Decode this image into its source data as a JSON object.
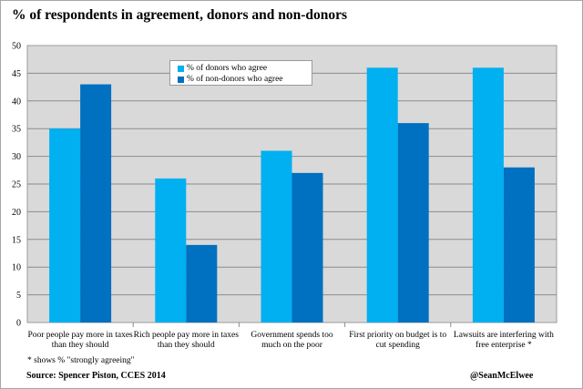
{
  "chart_data": {
    "type": "bar",
    "title": "% of respondents in agreement, donors and non-donors",
    "categories": [
      [
        "Poor people pay more in taxes",
        "than they should"
      ],
      [
        "Rich people pay more in taxes",
        "than they should"
      ],
      [
        "Government spends too",
        "much on the poor"
      ],
      [
        "First priority on budget is to",
        "cut spending"
      ],
      [
        "Lawsuits are interfering with",
        "free enterprise *"
      ]
    ],
    "series": [
      {
        "name": "% of donors who agree",
        "color": "#00b0f0",
        "values": [
          35,
          26,
          31,
          46,
          46
        ]
      },
      {
        "name": "% of non-donors who agree",
        "color": "#0070c0",
        "values": [
          43,
          14,
          27,
          36,
          28
        ]
      }
    ],
    "ylim": [
      0,
      50
    ],
    "yticks": [
      0,
      5,
      10,
      15,
      20,
      25,
      30,
      35,
      40,
      45,
      50
    ],
    "grid": true,
    "legend_position": "top-left",
    "plot_background": "#d9d9d9",
    "note": "* shows % \"strongly agreeing\"",
    "source": "Source: Spencer Piston, CCES 2014",
    "credit": "@SeanMcElwee"
  }
}
